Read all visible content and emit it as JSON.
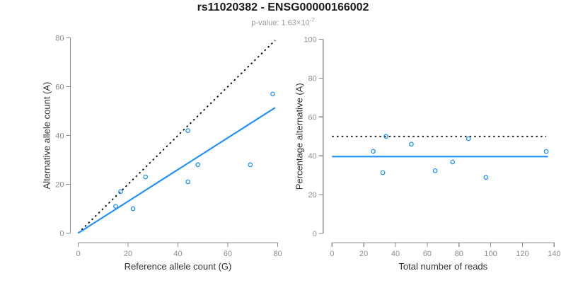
{
  "header": {
    "title": "rs11020382 - ENSG00000166002",
    "subtitle_prefix": "p-value: 1.63×10",
    "subtitle_exponent": "-7"
  },
  "colors": {
    "accent_blue": "#1E90FF",
    "point_blue": "#1E90FF",
    "dotted_black": "#000000",
    "axis_gray": "#8c8c8c",
    "tick_label_gray": "#8c8c8c",
    "axis_title_dark": "#333333",
    "title_black": "#1a1a1a",
    "subtitle_gray": "#9a9a9a"
  },
  "chart_data": [
    {
      "type": "scatter",
      "xlabel": "Reference allele count (G)",
      "ylabel": "Alternative allele count (A)",
      "xlim": [
        0,
        80
      ],
      "ylim": [
        0,
        80
      ],
      "xticks": [
        0,
        20,
        40,
        60,
        80
      ],
      "yticks": [
        0,
        20,
        40,
        60,
        80
      ],
      "grid": false,
      "points": [
        [
          15,
          11
        ],
        [
          17,
          17
        ],
        [
          22,
          10
        ],
        [
          27,
          23
        ],
        [
          44,
          21
        ],
        [
          44,
          42
        ],
        [
          48,
          28
        ],
        [
          69,
          28
        ],
        [
          78,
          57
        ]
      ],
      "lines": [
        {
          "style": "dotted",
          "color": "#000000",
          "x1": 0,
          "y1": 0,
          "x2": 79,
          "y2": 79
        },
        {
          "style": "solid",
          "color": "#1E90FF",
          "x1": 0,
          "y1": 0,
          "x2": 79,
          "y2": 51.4
        }
      ]
    },
    {
      "type": "scatter",
      "xlabel": "Total number of reads",
      "ylabel": "Percentage alternative (A)",
      "xlim": [
        0,
        140
      ],
      "ylim": [
        0,
        100
      ],
      "xticks": [
        0,
        20,
        40,
        60,
        80,
        100,
        120,
        140
      ],
      "yticks": [
        0,
        20,
        40,
        60,
        80,
        100
      ],
      "grid": false,
      "points": [
        [
          26,
          42.3
        ],
        [
          32,
          31.3
        ],
        [
          34,
          50.0
        ],
        [
          50,
          46.0
        ],
        [
          65,
          32.3
        ],
        [
          76,
          36.8
        ],
        [
          86,
          48.8
        ],
        [
          97,
          28.9
        ],
        [
          135,
          42.2
        ]
      ],
      "lines": [
        {
          "style": "dotted",
          "color": "#000000",
          "x1": 0,
          "y1": 50,
          "x2": 135,
          "y2": 50
        },
        {
          "style": "solid",
          "color": "#1E90FF",
          "x1": 0,
          "y1": 39.6,
          "x2": 136,
          "y2": 39.6
        }
      ]
    }
  ]
}
